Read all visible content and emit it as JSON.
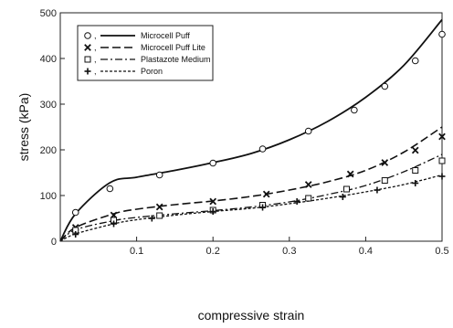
{
  "chart_data": {
    "type": "scatter",
    "title": "",
    "xlabel": "compressive strain",
    "ylabel": "stress (kPa)",
    "xlim": [
      0,
      0.5
    ],
    "ylim": [
      0,
      500
    ],
    "xticks": [
      "0.1",
      "0.2",
      "0.3",
      "0.4",
      "0.5"
    ],
    "xtick_values": [
      0.1,
      0.2,
      0.3,
      0.4,
      0.5
    ],
    "yticks": [
      "0",
      "100",
      "200",
      "300",
      "400",
      "500"
    ],
    "ytick_values": [
      0,
      100,
      200,
      300,
      400,
      500
    ],
    "grid": false,
    "legend_position": "top-left",
    "series": [
      {
        "name": "Microcell Puff",
        "marker": "circle",
        "line_style": "solid",
        "points": [
          [
            0.02,
            63
          ],
          [
            0.065,
            115
          ],
          [
            0.13,
            145
          ],
          [
            0.2,
            171
          ],
          [
            0.265,
            202
          ],
          [
            0.325,
            241
          ],
          [
            0.385,
            287
          ],
          [
            0.425,
            339
          ],
          [
            0.465,
            395
          ],
          [
            0.5,
            453
          ]
        ],
        "fit": [
          [
            0,
            0
          ],
          [
            0.02,
            60
          ],
          [
            0.065,
            128
          ],
          [
            0.1,
            140
          ],
          [
            0.15,
            155
          ],
          [
            0.2,
            172
          ],
          [
            0.25,
            192
          ],
          [
            0.3,
            222
          ],
          [
            0.35,
            262
          ],
          [
            0.4,
            315
          ],
          [
            0.45,
            385
          ],
          [
            0.5,
            485
          ]
        ]
      },
      {
        "name": "Microcell Puff Lite",
        "marker": "x",
        "line_style": "dashed",
        "points": [
          [
            0.02,
            30
          ],
          [
            0.07,
            57
          ],
          [
            0.13,
            75
          ],
          [
            0.2,
            87
          ],
          [
            0.27,
            103
          ],
          [
            0.325,
            124
          ],
          [
            0.38,
            147
          ],
          [
            0.425,
            172
          ],
          [
            0.465,
            199
          ],
          [
            0.5,
            229
          ]
        ],
        "fit": [
          [
            0,
            0
          ],
          [
            0.02,
            30
          ],
          [
            0.07,
            60
          ],
          [
            0.1,
            70
          ],
          [
            0.15,
            80
          ],
          [
            0.2,
            88
          ],
          [
            0.25,
            98
          ],
          [
            0.3,
            112
          ],
          [
            0.35,
            130
          ],
          [
            0.4,
            155
          ],
          [
            0.45,
            195
          ],
          [
            0.5,
            250
          ]
        ]
      },
      {
        "name": "Plastazote Medium",
        "marker": "square",
        "line_style": "dashdot",
        "points": [
          [
            0.02,
            24
          ],
          [
            0.07,
            46
          ],
          [
            0.13,
            56
          ],
          [
            0.2,
            68
          ],
          [
            0.265,
            79
          ],
          [
            0.325,
            94
          ],
          [
            0.375,
            114
          ],
          [
            0.425,
            133
          ],
          [
            0.465,
            155
          ],
          [
            0.5,
            176
          ]
        ],
        "fit": [
          [
            0,
            0
          ],
          [
            0.02,
            25
          ],
          [
            0.07,
            45
          ],
          [
            0.1,
            52
          ],
          [
            0.15,
            60
          ],
          [
            0.2,
            67
          ],
          [
            0.25,
            75
          ],
          [
            0.3,
            86
          ],
          [
            0.35,
            102
          ],
          [
            0.4,
            122
          ],
          [
            0.45,
            152
          ],
          [
            0.5,
            190
          ]
        ]
      },
      {
        "name": "Poron",
        "marker": "plus",
        "line_style": "dotted",
        "points": [
          [
            0.02,
            15
          ],
          [
            0.07,
            38
          ],
          [
            0.12,
            50
          ],
          [
            0.2,
            65
          ],
          [
            0.265,
            74
          ],
          [
            0.31,
            87
          ],
          [
            0.37,
            97
          ],
          [
            0.415,
            112
          ],
          [
            0.465,
            127
          ],
          [
            0.5,
            142
          ]
        ],
        "fit": [
          [
            0,
            0
          ],
          [
            0.02,
            16
          ],
          [
            0.07,
            38
          ],
          [
            0.1,
            47
          ],
          [
            0.15,
            57
          ],
          [
            0.2,
            65
          ],
          [
            0.25,
            72
          ],
          [
            0.3,
            82
          ],
          [
            0.35,
            94
          ],
          [
            0.4,
            108
          ],
          [
            0.45,
            124
          ],
          [
            0.5,
            145
          ]
        ]
      }
    ]
  }
}
